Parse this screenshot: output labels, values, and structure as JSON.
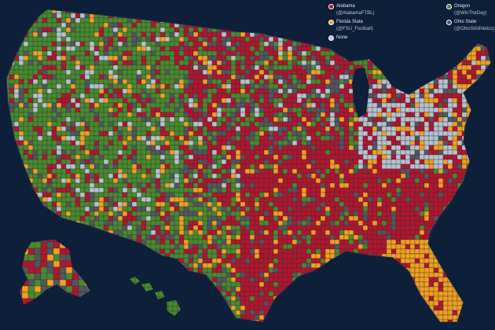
{
  "map": {
    "background": "#0e1f3a",
    "county_border_color": "#23314a",
    "regions": [
      {
        "id": "contiguous-us",
        "label": "Contiguous United States"
      },
      {
        "id": "alaska",
        "label": "Alaska"
      },
      {
        "id": "hawaii",
        "label": "Hawaii"
      }
    ]
  },
  "legend": {
    "items": [
      {
        "key": "alabama",
        "label": "Alabama",
        "handle": "(@AlabamaFTBL)",
        "color": "#b3152b"
      },
      {
        "key": "florida-state",
        "label": "Florida State",
        "handle": "(@FSU_Football)",
        "color": "#f3a01b"
      },
      {
        "key": "none",
        "label": "None",
        "handle": "",
        "color": "#b9c2cc"
      },
      {
        "key": "oregon",
        "label": "Oregon",
        "handle": "(@WinTheDay)",
        "color": "#4b8a2a"
      },
      {
        "key": "ohio-state",
        "label": "Ohio State",
        "handle": "(@OhioStAthletics)",
        "color": "#545658"
      }
    ]
  }
}
